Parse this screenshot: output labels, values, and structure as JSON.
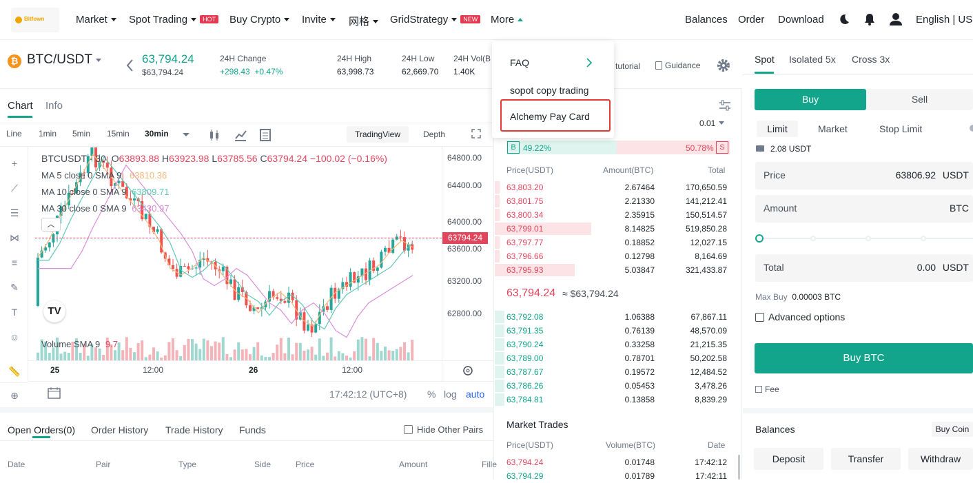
{
  "nav": {
    "logo": "Bitfown",
    "market": "Market",
    "spot": "Spot Trading",
    "hot": "HOT",
    "buy_crypto": "Buy Crypto",
    "invite": "Invite",
    "grid_cn": "网格",
    "grid": "GridStrategy",
    "new": "NEW",
    "more": "More",
    "balances": "Balances",
    "order": "Order",
    "download": "Download",
    "lang": "English | USD"
  },
  "dropdown": {
    "items": [
      "FAQ",
      "sopot copy trading",
      "Alchemy Pay Card"
    ],
    "highlight_color": "#e53935"
  },
  "ticker": {
    "pair": "BTC/USDT",
    "price": "63,794.24",
    "price_sub": "$63,794.24",
    "change_lbl": "24H Change",
    "change_abs": "+298.43",
    "change_pct": "+0.47%",
    "high_lbl": "24H High",
    "high": "63,998.73",
    "low_lbl": "24H Low",
    "low": "62,669.70",
    "vol_lbl": "24H Vol(B",
    "vol": "1.40K",
    "tutorial": "tutorial",
    "guidance": "Guidance"
  },
  "chart_tabs": {
    "chart": "Chart",
    "info": "Info"
  },
  "intervals": [
    "Line",
    "1min",
    "5min",
    "15min",
    "30min"
  ],
  "views": {
    "tv": "TradingView",
    "depth": "Depth"
  },
  "legend": {
    "title": "BTCUSDT · 30",
    "o_lbl": "O",
    "o": "63893.88",
    "h_lbl": "H",
    "h": "63923.98",
    "l_lbl": "L",
    "l": "63785.56",
    "c_lbl": "C",
    "c": "63794.24",
    "chg": "−100.02 (−0.16%)",
    "ma5": "MA 5 close 0 SMA 9",
    "ma5v": "63810.36",
    "ma10": "MA 10 close 0 SMA 9",
    "ma10v": "63809.71",
    "ma30": "MA 30 close 0 SMA 9",
    "ma30v": "63430.97",
    "vol": "Volume SMA 9",
    "volv": "9.7"
  },
  "yaxis": [
    "64800.00",
    "64400.00",
    "64000.00",
    "63600.00",
    "63200.00",
    "62800.00"
  ],
  "last_price_tag": "63794.24",
  "xaxis": [
    "25",
    "12:00",
    "26",
    "12:00"
  ],
  "chart_bottom": {
    "time": "17:42:12 (UTC+8)",
    "pct": "%",
    "log": "log",
    "auto": "auto"
  },
  "orders": {
    "tabs": [
      "Open Orders(0)",
      "Order History",
      "Trade History",
      "Funds"
    ],
    "hide": "Hide Other Pairs",
    "cols": [
      "Date",
      "Pair",
      "Type",
      "Side",
      "Price",
      "Amount",
      "Fille"
    ]
  },
  "orderbook": {
    "precision": "0.01",
    "buy_pct": "49.22%",
    "sell_pct": "50.78%",
    "b": "B",
    "s": "S",
    "cols": [
      "Price(USDT)",
      "Amount(BTC)",
      "Total"
    ],
    "asks": [
      [
        "63,803.20",
        "2.67464",
        "170,650.59"
      ],
      [
        "63,801.75",
        "2.21330",
        "141,212.41"
      ],
      [
        "63,800.34",
        "2.35915",
        "150,514.57"
      ],
      [
        "63,799.01",
        "8.14825",
        "519,850.28"
      ],
      [
        "63,797.77",
        "0.18852",
        "12,027.15"
      ],
      [
        "63,796.66",
        "0.12798",
        "8,164.69"
      ],
      [
        "63,795.93",
        "5.03847",
        "321,433.87"
      ]
    ],
    "ask_depth": [
      0.02,
      0.02,
      0.02,
      0.41,
      0.02,
      0.02,
      0.34
    ],
    "mid": "63,794.24",
    "mid_usd": "≈ $63,794.24",
    "bids": [
      [
        "63,792.08",
        "1.06388",
        "67,867.11"
      ],
      [
        "63,791.35",
        "0.76139",
        "48,570.09"
      ],
      [
        "63,790.24",
        "0.33258",
        "21,215.35"
      ],
      [
        "63,789.00",
        "0.78701",
        "50,202.58"
      ],
      [
        "63,787.67",
        "0.19572",
        "12,484.52"
      ],
      [
        "63,786.26",
        "0.05453",
        "3,478.26"
      ],
      [
        "63,784.81",
        "0.13858",
        "8,839.29"
      ]
    ]
  },
  "trades": {
    "title": "Market Trades",
    "cols": [
      "Price(USDT)",
      "Volume(BTC)",
      "Date"
    ],
    "rows": [
      [
        "63,794.24",
        "0.01748",
        "17:42:12"
      ],
      [
        "63,794.29",
        "0.01789",
        "17:42:11"
      ]
    ]
  },
  "trade": {
    "tabs": [
      "Spot",
      "Isolated 5x",
      "Cross 3x"
    ],
    "buy": "Buy",
    "sell": "Sell",
    "types": [
      "Limit",
      "Market",
      "Stop Limit"
    ],
    "avail": "2.08 USDT",
    "price_lbl": "Price",
    "price": "63806.92",
    "usdt": "USDT",
    "amount_lbl": "Amount",
    "btc": "BTC",
    "total_lbl": "Total",
    "total": "0.00",
    "maxbuy_lbl": "Max Buy",
    "maxbuy": "0.00003 BTC",
    "adv": "Advanced options",
    "buy_btn": "Buy BTC",
    "fee": "Fee",
    "balances": "Balances",
    "buycoin": "Buy Coin",
    "deposit": "Deposit",
    "transfer": "Transfer",
    "withdraw": "Withdraw"
  },
  "colors": {
    "green": "#11a38a",
    "red": "#e1465d",
    "accent": "#13a58c"
  }
}
